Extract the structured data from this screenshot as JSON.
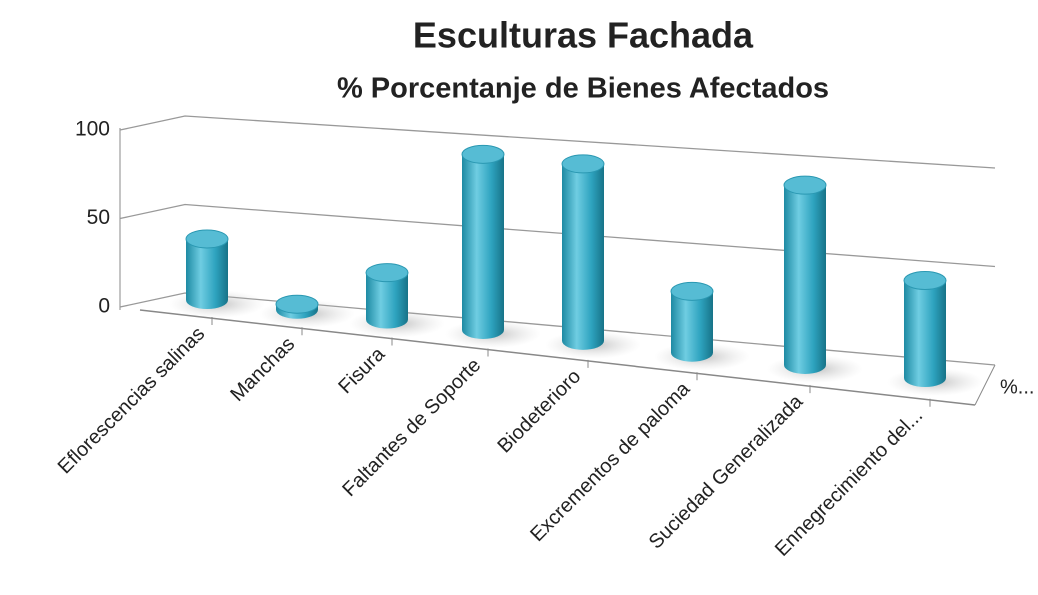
{
  "chart_data": {
    "type": "bar3d",
    "title": "Esculturas Fachada",
    "subtitle": "% Porcentanje de Bienes Afectados",
    "categories": [
      "Eflorescencias salinas",
      "Manchas",
      "Fisura",
      "Faltantes de Soporte",
      "Biodeterioro",
      "Excrementos de paloma",
      "Suciedad Generalizada",
      "Ennegrecimiento del..."
    ],
    "series": [
      {
        "name": "%...",
        "color": "#2ea3bf",
        "values": [
          33,
          3,
          25,
          93,
          93,
          32,
          93,
          50
        ]
      }
    ],
    "ylim": [
      0,
      100
    ],
    "yticks": [
      0,
      50,
      100
    ],
    "grid": true
  }
}
